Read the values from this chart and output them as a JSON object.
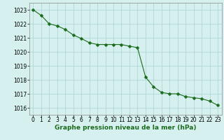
{
  "x": [
    0,
    1,
    2,
    3,
    4,
    5,
    6,
    7,
    8,
    9,
    10,
    11,
    12,
    13,
    14,
    15,
    16,
    17,
    18,
    19,
    20,
    21,
    22,
    23
  ],
  "y": [
    1023.0,
    1022.6,
    1022.0,
    1021.85,
    1021.6,
    1021.2,
    1020.95,
    1020.65,
    1020.52,
    1020.52,
    1020.52,
    1020.52,
    1020.4,
    1020.3,
    1018.2,
    1017.5,
    1017.1,
    1017.0,
    1017.0,
    1016.8,
    1016.72,
    1016.65,
    1016.48,
    1016.18
  ],
  "line_color": "#1a6b1a",
  "marker": "D",
  "marker_size": 2.5,
  "bg_color": "#d6f0f0",
  "grid_color": "#b0d8d8",
  "title": "Graphe pression niveau de la mer (hPa)",
  "ylim": [
    1015.5,
    1023.5
  ],
  "yticks": [
    1016,
    1017,
    1018,
    1019,
    1020,
    1021,
    1022,
    1023
  ],
  "xticks": [
    0,
    1,
    2,
    3,
    4,
    5,
    6,
    7,
    8,
    9,
    10,
    11,
    12,
    13,
    14,
    15,
    16,
    17,
    18,
    19,
    20,
    21,
    22,
    23
  ],
  "title_fontsize": 6.5,
  "tick_fontsize": 5.5
}
